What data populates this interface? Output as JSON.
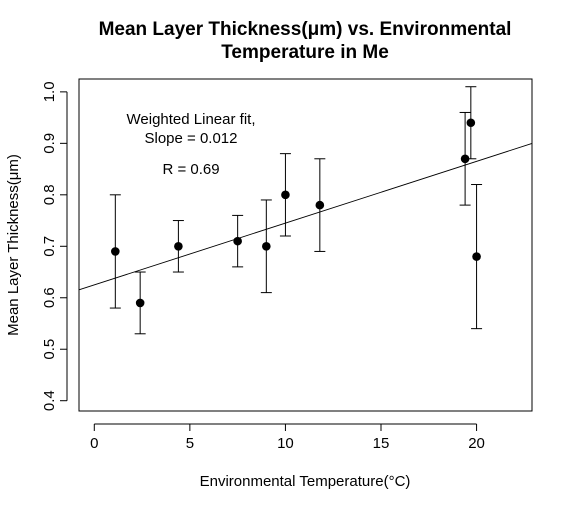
{
  "chart_data": {
    "type": "scatter",
    "title_lines": [
      "Mean Layer Thickness(μm) vs. Environmental",
      "Temperature in Me"
    ],
    "xlabel": "Environmental Temperature(°C)",
    "ylabel": "Mean Layer Thickness(μm)",
    "xlim": [
      -0.8,
      22.9
    ],
    "ylim": [
      0.38,
      1.025
    ],
    "x_ticks": [
      0,
      5,
      10,
      15,
      20
    ],
    "y_ticks": [
      0.4,
      0.5,
      0.6,
      0.7,
      0.8,
      0.9,
      1.0
    ],
    "x_tick_labels": [
      "0",
      "5",
      "10",
      "15",
      "20"
    ],
    "y_tick_labels": [
      "0.4",
      "0.5",
      "0.6",
      "0.7",
      "0.8",
      "0.9",
      "1.0"
    ],
    "points": [
      {
        "x": 1.1,
        "y": 0.69,
        "lo": 0.58,
        "hi": 0.8
      },
      {
        "x": 2.4,
        "y": 0.59,
        "lo": 0.53,
        "hi": 0.65
      },
      {
        "x": 4.4,
        "y": 0.7,
        "lo": 0.65,
        "hi": 0.75
      },
      {
        "x": 7.5,
        "y": 0.71,
        "lo": 0.66,
        "hi": 0.76
      },
      {
        "x": 9.0,
        "y": 0.7,
        "lo": 0.61,
        "hi": 0.79
      },
      {
        "x": 10.0,
        "y": 0.8,
        "lo": 0.72,
        "hi": 0.88
      },
      {
        "x": 11.8,
        "y": 0.78,
        "lo": 0.69,
        "hi": 0.87
      },
      {
        "x": 19.4,
        "y": 0.87,
        "lo": 0.78,
        "hi": 0.96
      },
      {
        "x": 19.7,
        "y": 0.94,
        "lo": 0.87,
        "hi": 1.01
      },
      {
        "x": 20.0,
        "y": 0.68,
        "lo": 0.54,
        "hi": 0.82
      }
    ],
    "fit_line": {
      "intercept": 0.625,
      "slope": 0.012
    },
    "annotations": [
      "Weighted Linear fit,",
      "Slope =  0.012",
      "R = 0.69"
    ],
    "grid": false,
    "legend": "none"
  }
}
